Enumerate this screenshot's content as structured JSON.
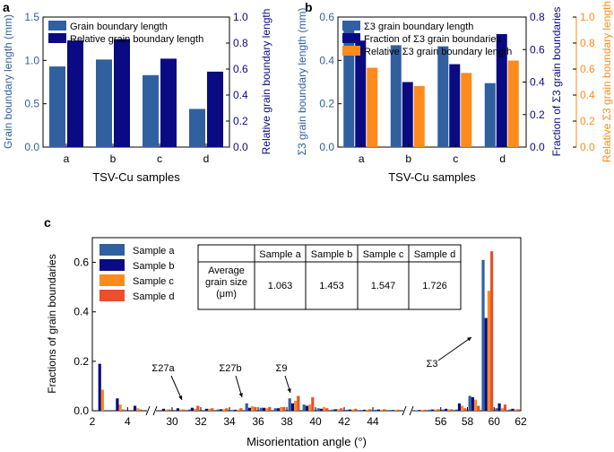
{
  "colors": {
    "steel": "#3060a0",
    "navy": "#0a0a82",
    "orange": "#ff8a1e",
    "red": "#e8512a"
  },
  "chart_data": [
    {
      "panel": "a",
      "type": "bar",
      "xlabel": "TSV-Cu samples",
      "ylabel_left": "Grain boundary length (mm)",
      "ylabel_right": "Relative grain boundary length",
      "ylim_left": [
        0,
        1.5
      ],
      "ylim_right": [
        0,
        1.0
      ],
      "yticks_left": [
        "0.0",
        "0.5",
        "1.0",
        "1.5"
      ],
      "yticks_right": [
        "0.0",
        "0.2",
        "0.4",
        "0.6",
        "0.8",
        "1.0"
      ],
      "categories": [
        "a",
        "b",
        "c",
        "d"
      ],
      "legend_position": "top-left",
      "series": [
        {
          "name": "Grain boundary length",
          "axis": "left",
          "color": "#3060a0",
          "values": [
            0.93,
            1.01,
            0.83,
            0.44
          ]
        },
        {
          "name": "Relative grain boundary length",
          "axis": "right",
          "color": "#0a0a82",
          "values": [
            0.82,
            0.83,
            0.68,
            0.58
          ]
        }
      ]
    },
    {
      "panel": "b",
      "type": "bar",
      "xlabel": "TSV-Cu samples",
      "ylabel_left": "Σ3 grain boundary length (mm)",
      "ylabel_right": "Fraction of Σ3 grain boundaries",
      "ylabel_right2": "Relative Σ3 grain boundary length",
      "ylim_left": [
        0,
        0.6
      ],
      "ylim_right": [
        0,
        0.8
      ],
      "ylim_right2": [
        0,
        1.0
      ],
      "yticks_left": [
        "0.0",
        "0.2",
        "0.4",
        "0.6"
      ],
      "yticks_right": [
        "0.0",
        "0.2",
        "0.4",
        "0.6",
        "0.8"
      ],
      "yticks_right2": [
        "0.0",
        "0.2",
        "0.4",
        "0.6",
        "0.8",
        "1.0"
      ],
      "categories": [
        "a",
        "b",
        "c",
        "d"
      ],
      "legend_position": "top-right",
      "series": [
        {
          "name": "Σ3 grain boundary length",
          "axis": "left",
          "color": "#3060a0",
          "values": [
            0.58,
            0.47,
            0.465,
            0.295
          ]
        },
        {
          "name": "Fraction of Σ3 grain boundaries",
          "axis": "right",
          "color": "#0a0a82",
          "values": [
            0.655,
            0.4,
            0.51,
            0.695
          ]
        },
        {
          "name": "Relative Σ3 grain boundary length",
          "axis": "right2",
          "color": "#ff8a1e",
          "values": [
            0.61,
            0.47,
            0.57,
            0.665
          ]
        }
      ]
    },
    {
      "panel": "c",
      "type": "bar",
      "xlabel": "Misorientation angle (°)",
      "ylabel": "Fractions of  grain boundaries",
      "ylim": [
        0,
        0.7
      ],
      "yticks": [
        "0.0",
        "0.2",
        "0.4",
        "0.6"
      ],
      "legend_position": "top-left",
      "segments": [
        {
          "range": [
            2,
            5
          ],
          "ticks": [
            "2",
            "4"
          ]
        },
        {
          "range": [
            29,
            46
          ],
          "ticks": [
            "30",
            "32",
            "34",
            "36",
            "38",
            "40",
            "42",
            "44"
          ]
        },
        {
          "range": [
            54,
            62
          ],
          "ticks": [
            "56",
            "58",
            "60",
            "62"
          ]
        }
      ],
      "bins": [
        2.5,
        3.5,
        4.5,
        29.5,
        30.5,
        31.5,
        32.5,
        33.5,
        34.5,
        35.5,
        36.5,
        37.5,
        38.5,
        39.5,
        40.5,
        41.5,
        42.5,
        43.5,
        44.5,
        45.5,
        54.5,
        55.5,
        56.5,
        57.5,
        58.5,
        59.5,
        60.5,
        61.5
      ],
      "series": [
        {
          "name": "Sample a",
          "color": "#3060a0",
          "values": [
            0.0,
            0.0,
            0.0,
            0.0,
            0.0,
            0.005,
            0.003,
            0.005,
            0.003,
            0.03,
            0.012,
            0.01,
            0.05,
            0.025,
            0.01,
            0.005,
            0.004,
            0.003,
            0.004,
            0.003,
            0.002,
            0.004,
            0.005,
            0.005,
            0.06,
            0.61,
            0.01,
            0.005
          ]
        },
        {
          "name": "Sample b",
          "color": "#0a0a82",
          "values": [
            0.19,
            0.05,
            0.02,
            0.008,
            0.01,
            0.012,
            0.008,
            0.006,
            0.004,
            0.012,
            0.012,
            0.01,
            0.03,
            0.02,
            0.008,
            0.006,
            0.005,
            0.004,
            0.005,
            0.003,
            0.003,
            0.005,
            0.008,
            0.03,
            0.055,
            0.375,
            0.03,
            0.008
          ]
        },
        {
          "name": "Sample c",
          "color": "#ff8a1e",
          "values": [
            0.085,
            0.025,
            0.01,
            0.005,
            0.005,
            0.008,
            0.008,
            0.006,
            0.004,
            0.018,
            0.01,
            0.015,
            0.04,
            0.025,
            0.015,
            0.006,
            0.005,
            0.004,
            0.004,
            0.004,
            0.003,
            0.005,
            0.006,
            0.02,
            0.045,
            0.485,
            0.01,
            0.006
          ]
        },
        {
          "name": "Sample d",
          "color": "#e8512a",
          "values": [
            0.0,
            0.005,
            0.005,
            0.005,
            0.005,
            0.02,
            0.01,
            0.01,
            0.01,
            0.015,
            0.015,
            0.015,
            0.06,
            0.055,
            0.01,
            0.01,
            0.008,
            0.006,
            0.006,
            0.004,
            0.004,
            0.006,
            0.006,
            0.01,
            0.02,
            0.645,
            0.025,
            0.006
          ]
        }
      ],
      "annotations": [
        {
          "text": "Σ27a",
          "x": 31.5,
          "y": 0.02
        },
        {
          "text": "Σ27b",
          "x": 35.5,
          "y": 0.03
        },
        {
          "text": "Σ9",
          "x": 38.5,
          "y": 0.06
        },
        {
          "text": "Σ3",
          "x": 59.5,
          "y": 0.5
        }
      ],
      "table": {
        "headers": [
          "",
          "Sample a",
          "Sample b",
          "Sample c",
          "Sample d"
        ],
        "row_label": [
          "Average",
          "grain size",
          "(μm)"
        ],
        "values": [
          "1.063",
          "1.453",
          "1.547",
          "1.726"
        ]
      }
    }
  ]
}
